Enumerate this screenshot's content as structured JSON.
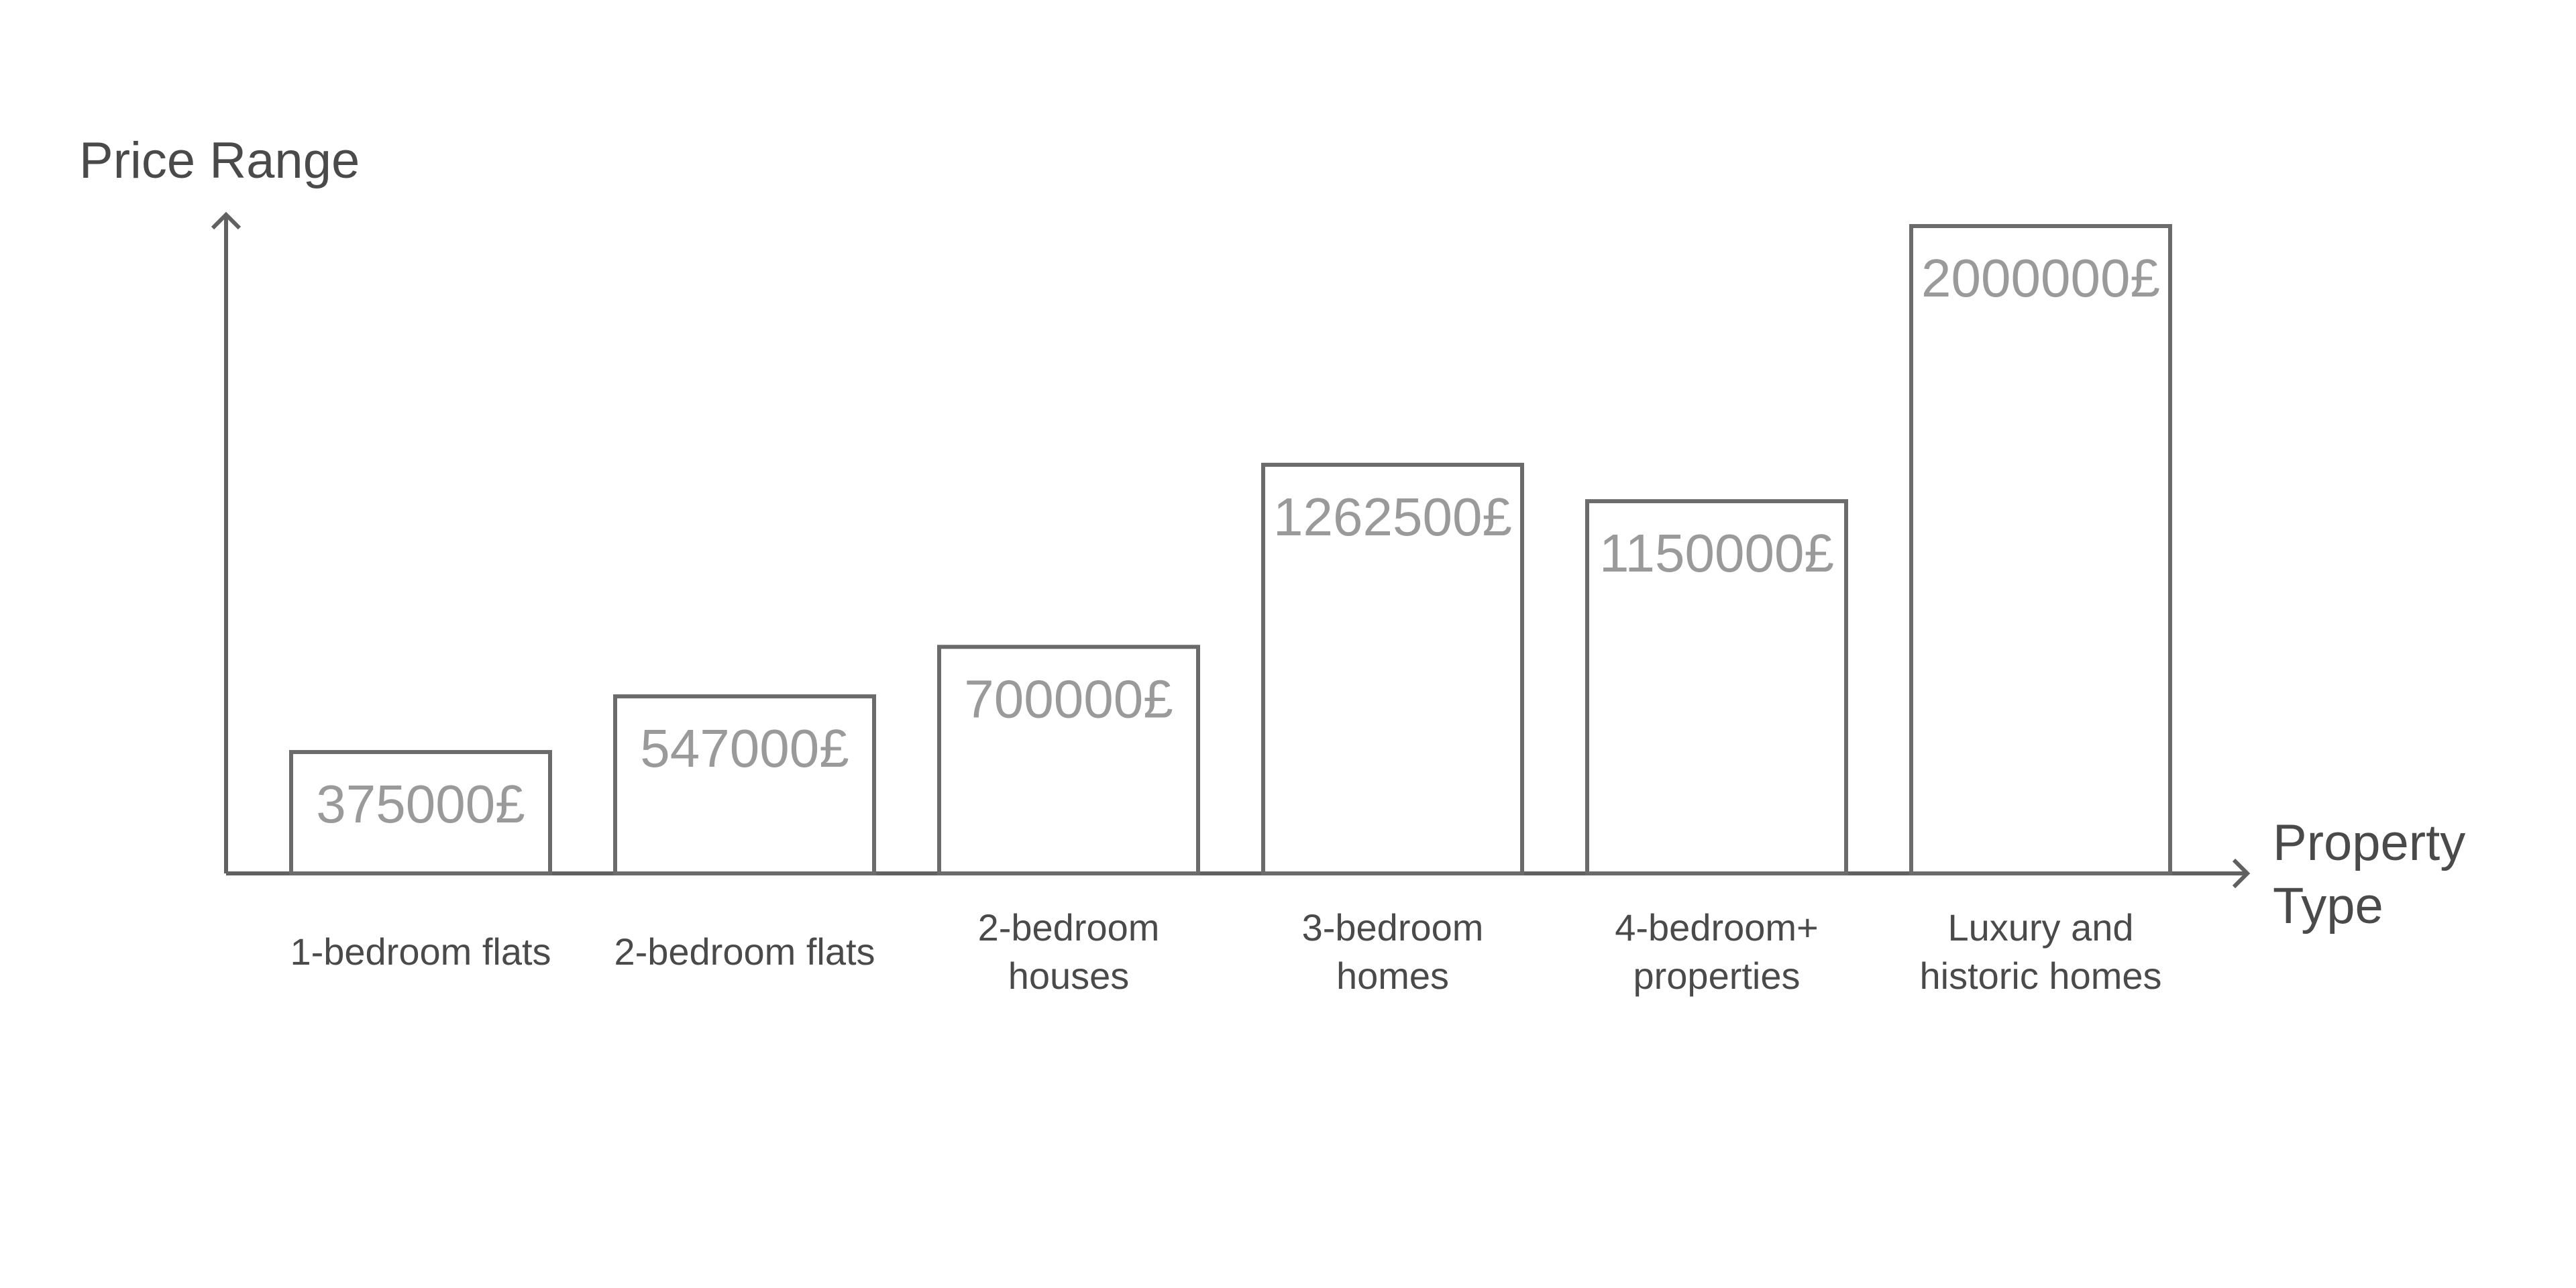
{
  "chart_data": {
    "type": "bar",
    "ylabel": "Price Range",
    "xlabel": [
      "Property",
      "Type"
    ],
    "categories": [
      [
        "1-bedroom flats"
      ],
      [
        "2-bedroom flats"
      ],
      [
        "2-bedroom",
        "houses"
      ],
      [
        "3-bedroom",
        "homes"
      ],
      [
        "4-bedroom+",
        "properties"
      ],
      [
        "Luxury and",
        "historic homes"
      ]
    ],
    "values": [
      375000,
      547000,
      700000,
      1262500,
      1150000,
      2000000
    ],
    "value_labels": [
      "375000£",
      "547000£",
      "700000£",
      "1262500£",
      "1150000£",
      "2000000£"
    ],
    "ylim": [
      0,
      2000000
    ],
    "grid": false,
    "legend": "none",
    "colors": {
      "axis": "#616161",
      "bar_stroke": "#6b6b6b",
      "bar_fill": "#ffffff",
      "value_text": "#9a9a9a",
      "label_text": "#4a4a4a"
    }
  }
}
